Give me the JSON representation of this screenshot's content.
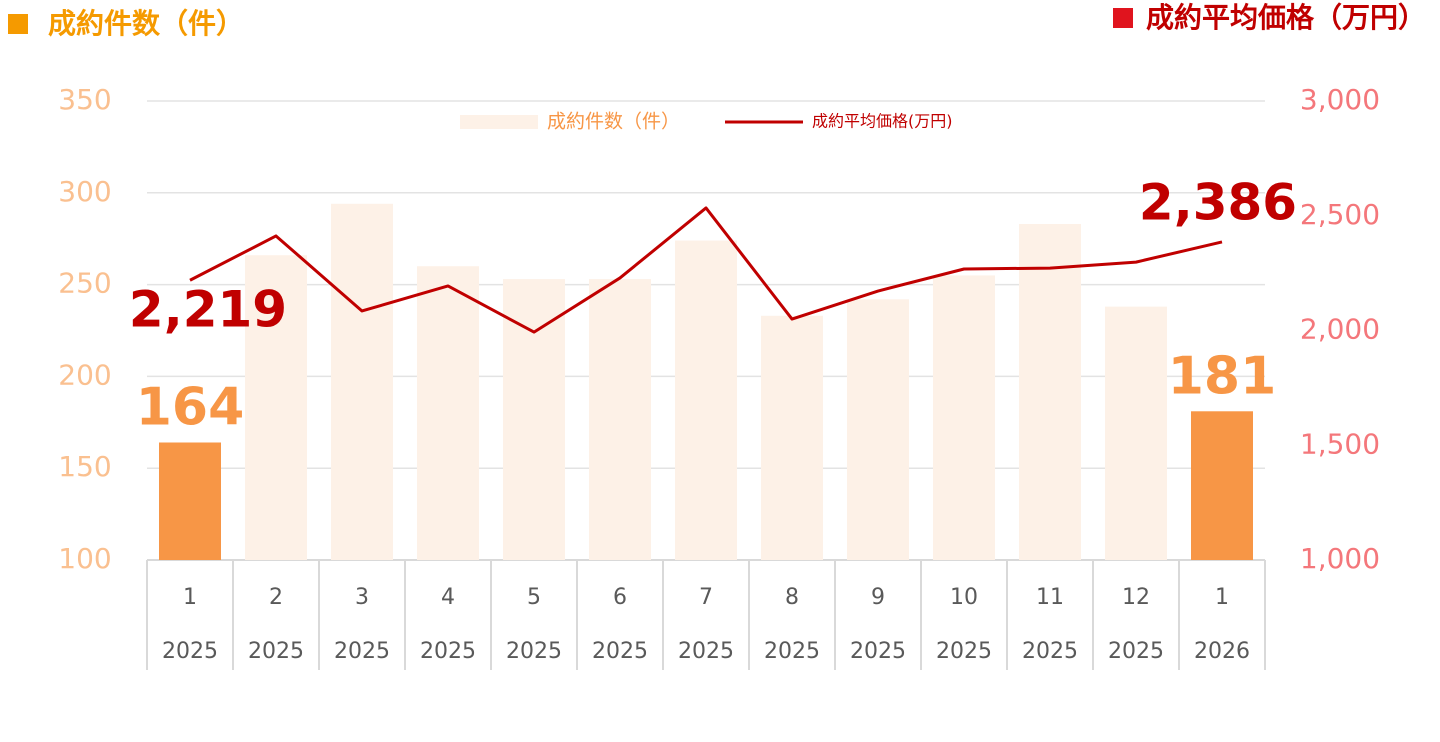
{
  "chart_data": {
    "type": "bar-line",
    "left_title": "成約件数（件）",
    "right_title": "成約平均価格（万円）",
    "categories": [
      "1",
      "2",
      "3",
      "4",
      "5",
      "6",
      "7",
      "8",
      "9",
      "10",
      "11",
      "12",
      "1"
    ],
    "category_years": [
      "2025",
      "2025",
      "2025",
      "2025",
      "2025",
      "2025",
      "2025",
      "2025",
      "2025",
      "2025",
      "2025",
      "2025",
      "2026"
    ],
    "series": [
      {
        "name": "成約件数（件）",
        "type": "bar",
        "color": "#FDF1E7",
        "colors": [
          "#F79646",
          "#FDF1E7",
          "#FDF1E7",
          "#FDF1E7",
          "#FDF1E7",
          "#FDF1E7",
          "#FDF1E7",
          "#FDF1E7",
          "#FDF1E7",
          "#FDF1E7",
          "#FDF1E7",
          "#FDF1E7",
          "#F79646"
        ],
        "values": [
          164,
          266,
          294,
          260,
          253,
          253,
          274,
          233,
          242,
          255,
          283,
          238,
          181
        ],
        "value_labels": [
          "164",
          null,
          null,
          null,
          null,
          null,
          null,
          null,
          null,
          null,
          null,
          null,
          "181"
        ]
      },
      {
        "name": "成約平均価格(万円)",
        "type": "line",
        "axis": "y2",
        "color": "#C00000",
        "values": [
          2219,
          2412,
          2085,
          2194,
          1993,
          2229,
          2534,
          2050,
          2172,
          2268,
          2272,
          2298,
          2386
        ],
        "value_labels": [
          "2,219",
          null,
          null,
          null,
          null,
          null,
          null,
          null,
          null,
          null,
          null,
          null,
          "2,386"
        ]
      }
    ],
    "ylim": [
      100,
      350
    ],
    "yticks": [
      100,
      150,
      200,
      250,
      300,
      350
    ],
    "y2lim": [
      1000,
      3000
    ],
    "y2ticks": [
      {
        "value": 1000,
        "label": "1,000"
      },
      {
        "value": 1500,
        "label": "1,500"
      },
      {
        "value": 2000,
        "label": "2,000"
      },
      {
        "value": 2500,
        "label": "2,500"
      },
      {
        "value": 3000,
        "label": "3,000"
      }
    ],
    "grid": true,
    "legend": "top"
  }
}
